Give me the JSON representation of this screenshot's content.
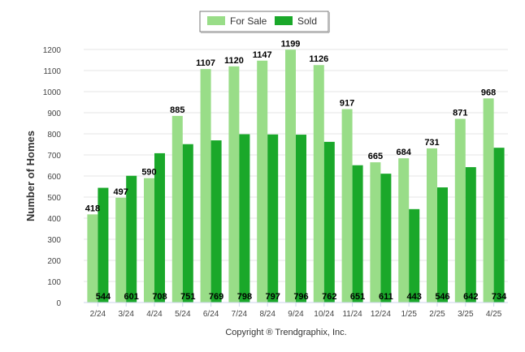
{
  "chart_data": {
    "type": "bar",
    "categories": [
      "2/24",
      "3/24",
      "4/24",
      "5/24",
      "6/24",
      "7/24",
      "8/24",
      "9/24",
      "10/24",
      "11/24",
      "12/24",
      "1/25",
      "2/25",
      "3/25",
      "4/25"
    ],
    "series": [
      {
        "name": "For Sale",
        "color": "#99dd88",
        "values": [
          418,
          497,
          590,
          885,
          1107,
          1120,
          1147,
          1199,
          1126,
          917,
          665,
          684,
          731,
          871,
          968
        ]
      },
      {
        "name": "Sold",
        "color": "#1aa82a",
        "values": [
          544,
          601,
          708,
          751,
          769,
          798,
          797,
          796,
          762,
          651,
          611,
          443,
          546,
          642,
          734
        ]
      }
    ],
    "ylabel": "Number of Homes",
    "ylim": [
      0,
      1200
    ],
    "yticks": [
      0,
      100,
      200,
      300,
      400,
      500,
      600,
      700,
      800,
      900,
      1000,
      1100,
      1200
    ],
    "grid": true,
    "legend": "top-center"
  },
  "footer": {
    "copyright": "Copyright ® Trendgraphix, Inc."
  }
}
